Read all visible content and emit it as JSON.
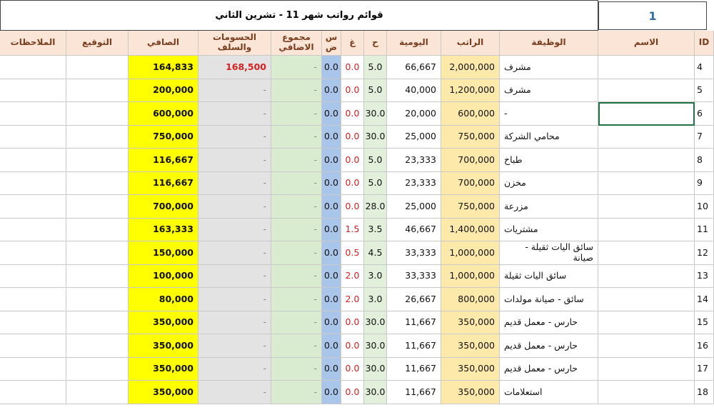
{
  "title": "قوائم رواتب شهر 11 - تشرين الثاني",
  "sheet_number": "1",
  "table": {
    "header": {
      "id": "ID",
      "name": "الاسم",
      "job": "الوظيفة",
      "salary": "الراتب",
      "daily": "اليومية",
      "h": "ح",
      "gh": "غ",
      "sd": "س ض",
      "extra": "مجموع الاضافي",
      "deductions": "الحسومات والسلف",
      "net": "الصافي",
      "signature": "التوقيع",
      "notes": "الملاحظات"
    },
    "rows": [
      {
        "id": "4",
        "job": "مشرف",
        "salary": "2,000,000",
        "daily": "66,667",
        "h": "5.0",
        "gh": "0.0",
        "sd": "0.0",
        "extra": "-",
        "deductions": "168,500",
        "net": "164,833"
      },
      {
        "id": "5",
        "job": "مشرف",
        "salary": "1,200,000",
        "daily": "40,000",
        "h": "5.0",
        "gh": "0.0",
        "sd": "0.0",
        "extra": "-",
        "deductions": "-",
        "net": "200,000"
      },
      {
        "id": "6",
        "job": "-",
        "salary": "600,000",
        "daily": "20,000",
        "h": "30.0",
        "gh": "0.0",
        "sd": "0.0",
        "extra": "-",
        "deductions": "-",
        "net": "600,000"
      },
      {
        "id": "7",
        "job": "محامي الشركة",
        "salary": "750,000",
        "daily": "25,000",
        "h": "30.0",
        "gh": "0.0",
        "sd": "0.0",
        "extra": "-",
        "deductions": "-",
        "net": "750,000"
      },
      {
        "id": "8",
        "job": "طباخ",
        "salary": "700,000",
        "daily": "23,333",
        "h": "5.0",
        "gh": "0.0",
        "sd": "0.0",
        "extra": "-",
        "deductions": "-",
        "net": "116,667"
      },
      {
        "id": "9",
        "job": "مخزن",
        "salary": "700,000",
        "daily": "23,333",
        "h": "5.0",
        "gh": "0.0",
        "sd": "0.0",
        "extra": "-",
        "deductions": "-",
        "net": "116,667"
      },
      {
        "id": "10",
        "job": "مزرعة",
        "salary": "750,000",
        "daily": "25,000",
        "h": "28.0",
        "gh": "0.0",
        "sd": "0.0",
        "extra": "-",
        "deductions": "-",
        "net": "700,000"
      },
      {
        "id": "11",
        "job": "مشتريات",
        "salary": "1,400,000",
        "daily": "46,667",
        "h": "3.5",
        "gh": "1.5",
        "sd": "0.0",
        "extra": "-",
        "deductions": "-",
        "net": "163,333"
      },
      {
        "id": "12",
        "job": "سائق اليات ثقيلة - صيانة",
        "salary": "1,000,000",
        "daily": "33,333",
        "h": "4.5",
        "gh": "0.5",
        "sd": "0.0",
        "extra": "-",
        "deductions": "-",
        "net": "150,000"
      },
      {
        "id": "13",
        "job": "سائق اليات ثقيلة",
        "salary": "1,000,000",
        "daily": "33,333",
        "h": "3.0",
        "gh": "2.0",
        "sd": "0.0",
        "extra": "-",
        "deductions": "-",
        "net": "100,000"
      },
      {
        "id": "14",
        "job": "سائق - صيانة مولدات",
        "salary": "800,000",
        "daily": "26,667",
        "h": "3.0",
        "gh": "2.0",
        "sd": "0.0",
        "extra": "-",
        "deductions": "-",
        "net": "80,000"
      },
      {
        "id": "15",
        "job": "حارس - معمل قديم",
        "salary": "350,000",
        "daily": "11,667",
        "h": "30.0",
        "gh": "0.0",
        "sd": "0.0",
        "extra": "-",
        "deductions": "-",
        "net": "350,000"
      },
      {
        "id": "16",
        "job": "حارس - معمل قديم",
        "salary": "350,000",
        "daily": "11,667",
        "h": "30.0",
        "gh": "0.0",
        "sd": "0.0",
        "extra": "-",
        "deductions": "-",
        "net": "350,000"
      },
      {
        "id": "17",
        "job": "حارس - معمل قديم",
        "salary": "350,000",
        "daily": "11,667",
        "h": "30.0",
        "gh": "0.0",
        "sd": "0.0",
        "extra": "-",
        "deductions": "-",
        "net": "350,000"
      },
      {
        "id": "18",
        "job": "استعلامات",
        "salary": "350,000",
        "daily": "11,667",
        "h": "30.0",
        "gh": "0.0",
        "sd": "0.0",
        "extra": "-",
        "deductions": "-",
        "net": "350,000"
      }
    ]
  }
}
